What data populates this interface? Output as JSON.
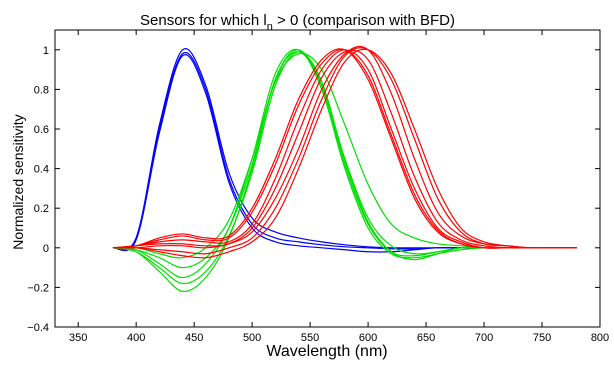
{
  "chart_data": {
    "type": "line",
    "title": "Sensors for which l",
    "title_subscript": "n",
    "title_rest": " > 0 (comparison with BFD)",
    "xlabel": "Wavelength (nm)",
    "ylabel": "Normalized sensitivity",
    "xlim": [
      330,
      800
    ],
    "ylim": [
      -0.4,
      1.1
    ],
    "x_ticks": [
      350,
      400,
      450,
      500,
      550,
      600,
      650,
      700,
      750,
      800
    ],
    "y_ticks": [
      -0.4,
      -0.2,
      0,
      0.2,
      0.4,
      0.6,
      0.8,
      1
    ],
    "x_tick_labels": [
      "350",
      "400",
      "450",
      "500",
      "550",
      "600",
      "650",
      "700",
      "750",
      "800"
    ],
    "y_tick_labels": [
      "−0.4",
      "−0.2",
      "0",
      "0.2",
      "0.4",
      "0.6",
      "0.8",
      "1"
    ],
    "grid": false,
    "x_sample_points": [
      380,
      400,
      420,
      440,
      460,
      480,
      500,
      520,
      540,
      560,
      580,
      600,
      620,
      640,
      660,
      680,
      700,
      720,
      740,
      760,
      780
    ],
    "groups": [
      {
        "color": "#0000ff",
        "curves": [
          [
            0,
            0.05,
            0.6,
            0.98,
            0.8,
            0.35,
            0.12,
            0.05,
            0.03,
            0.015,
            0.005,
            0,
            -0.005,
            -0.005,
            0,
            0,
            0,
            0,
            0,
            0,
            0
          ],
          [
            0,
            0.05,
            0.62,
            1.0,
            0.82,
            0.38,
            0.15,
            0.08,
            0.05,
            0.03,
            0.015,
            0.005,
            0,
            0,
            0,
            0,
            0,
            0,
            0,
            0,
            0
          ],
          [
            0,
            0.04,
            0.58,
            0.97,
            0.78,
            0.33,
            0.1,
            0.03,
            0.01,
            0,
            -0.01,
            -0.02,
            -0.02,
            -0.01,
            0,
            0,
            0,
            0,
            0,
            0,
            0
          ]
        ]
      },
      {
        "color": "#00e000",
        "curves": [
          [
            0,
            -0.02,
            -0.12,
            -0.22,
            -0.15,
            0.05,
            0.4,
            0.85,
            1.0,
            0.82,
            0.42,
            0.12,
            -0.02,
            -0.04,
            -0.02,
            0,
            0,
            0,
            0,
            0,
            0
          ],
          [
            0,
            -0.01,
            -0.08,
            -0.15,
            -0.08,
            0.1,
            0.45,
            0.88,
            1.0,
            0.8,
            0.4,
            0.1,
            -0.03,
            -0.05,
            -0.03,
            -0.01,
            0,
            0,
            0,
            0,
            0
          ],
          [
            0,
            -0.01,
            -0.05,
            -0.1,
            -0.05,
            0.1,
            0.42,
            0.85,
            0.99,
            0.82,
            0.45,
            0.15,
            0.01,
            -0.03,
            -0.02,
            0,
            0,
            0,
            0,
            0,
            0
          ],
          [
            0,
            0,
            -0.03,
            -0.05,
            0,
            0.14,
            0.45,
            0.84,
            0.98,
            0.9,
            0.62,
            0.32,
            0.12,
            0.05,
            0.02,
            0.01,
            0,
            0,
            0,
            0,
            0
          ],
          [
            0,
            -0.02,
            -0.1,
            -0.18,
            -0.12,
            0.06,
            0.38,
            0.82,
            0.99,
            0.84,
            0.44,
            0.13,
            -0.02,
            -0.06,
            -0.03,
            0,
            0,
            0,
            0,
            0,
            0
          ]
        ]
      },
      {
        "color": "#ff0000",
        "curves": [
          [
            0,
            0.01,
            0.05,
            0.07,
            0.05,
            0.06,
            0.2,
            0.45,
            0.75,
            0.95,
            1.0,
            0.85,
            0.55,
            0.25,
            0.08,
            0.02,
            0,
            0,
            0,
            0,
            0
          ],
          [
            0,
            0.01,
            0.03,
            0.04,
            0.03,
            0.03,
            0.12,
            0.35,
            0.65,
            0.9,
            1.0,
            0.9,
            0.6,
            0.3,
            0.1,
            0.03,
            0,
            0,
            0,
            0,
            0
          ],
          [
            0,
            0,
            0.01,
            0.01,
            0,
            0.02,
            0.08,
            0.25,
            0.5,
            0.8,
            0.98,
            1.0,
            0.78,
            0.45,
            0.18,
            0.06,
            0.02,
            0.01,
            0,
            0,
            0
          ],
          [
            0,
            0,
            -0.01,
            -0.02,
            -0.03,
            0,
            0.05,
            0.2,
            0.45,
            0.75,
            0.97,
            1.0,
            0.85,
            0.55,
            0.25,
            0.08,
            0.02,
            0.01,
            0,
            0,
            0
          ],
          [
            0,
            0,
            -0.02,
            -0.04,
            -0.05,
            -0.02,
            0.03,
            0.15,
            0.4,
            0.7,
            0.94,
            1.0,
            0.88,
            0.6,
            0.3,
            0.1,
            0.03,
            0.01,
            0,
            0,
            0
          ],
          [
            0,
            0.01,
            0.04,
            0.06,
            0.04,
            0.05,
            0.18,
            0.42,
            0.72,
            0.93,
            1.0,
            0.87,
            0.57,
            0.27,
            0.09,
            0.02,
            0,
            0,
            0,
            0,
            0
          ],
          [
            0,
            0.01,
            0.02,
            0.02,
            0.01,
            0.02,
            0.1,
            0.3,
            0.58,
            0.86,
            0.99,
            0.95,
            0.68,
            0.36,
            0.13,
            0.04,
            0.01,
            0,
            0,
            0,
            0
          ]
        ]
      }
    ]
  }
}
